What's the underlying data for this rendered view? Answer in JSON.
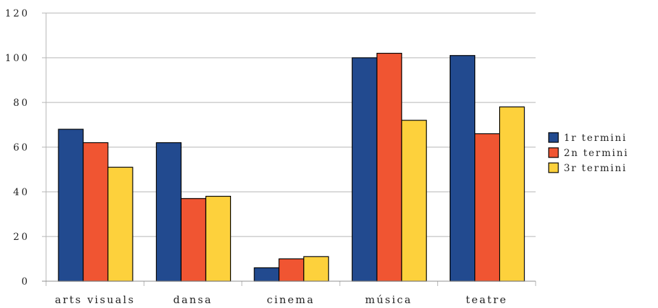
{
  "chart_data": {
    "type": "bar",
    "title": "",
    "xlabel": "",
    "ylabel": "",
    "categories": [
      "arts visuals",
      "dansa",
      "cinema",
      "música",
      "teatre"
    ],
    "series": [
      {
        "name": "1r termini",
        "color": "#224a8f",
        "values": [
          68,
          62,
          6,
          100,
          101
        ]
      },
      {
        "name": "2n termini",
        "color": "#f05532",
        "values": [
          62,
          37,
          10,
          102,
          66
        ]
      },
      {
        "name": "3r termini",
        "color": "#fdd13c",
        "values": [
          51,
          38,
          11,
          72,
          78
        ]
      }
    ],
    "ylim": [
      0,
      120
    ],
    "yticks": [
      "0",
      "20",
      "40",
      "60",
      "80",
      "100",
      "120"
    ],
    "grid": "horizontal",
    "legend_position": "right",
    "gridline_color": "#b3b3b3"
  }
}
